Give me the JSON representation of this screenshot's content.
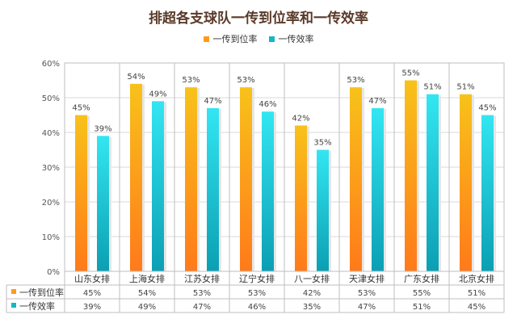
{
  "colors": {
    "series1_top": "#f8c21a",
    "series1_bottom": "#ff7a1a",
    "series2_top": "#33e6f2",
    "series2_bottom": "#0b9fb3",
    "title": "#5a3a2a",
    "grid": "#d9d9d9"
  },
  "chart_data": {
    "type": "bar",
    "title": "排超各支球队一传到位率和一传效率",
    "categories": [
      "山东女排",
      "上海女排",
      "江苏女排",
      "辽宁女排",
      "八一女排",
      "天津女排",
      "广东女排",
      "北京女排"
    ],
    "series": [
      {
        "name": "一传到位率",
        "values": [
          45,
          54,
          53,
          53,
          42,
          53,
          55,
          51
        ],
        "labels": [
          "45%",
          "54%",
          "53%",
          "53%",
          "42%",
          "53%",
          "55%",
          "51%"
        ]
      },
      {
        "name": "一传效率",
        "values": [
          39,
          49,
          47,
          46,
          35,
          47,
          51,
          45
        ],
        "labels": [
          "39%",
          "49%",
          "47%",
          "46%",
          "35%",
          "47%",
          "51%",
          "45%"
        ]
      }
    ],
    "yticks": [
      0,
      10,
      20,
      30,
      40,
      50,
      60
    ],
    "ytick_labels": [
      "0%",
      "10%",
      "20%",
      "30%",
      "40%",
      "50%",
      "60%"
    ],
    "ylim": [
      0,
      60
    ],
    "xlabel": "",
    "ylabel": "",
    "legend_position": "top-center",
    "grid": true,
    "data_table": true
  }
}
